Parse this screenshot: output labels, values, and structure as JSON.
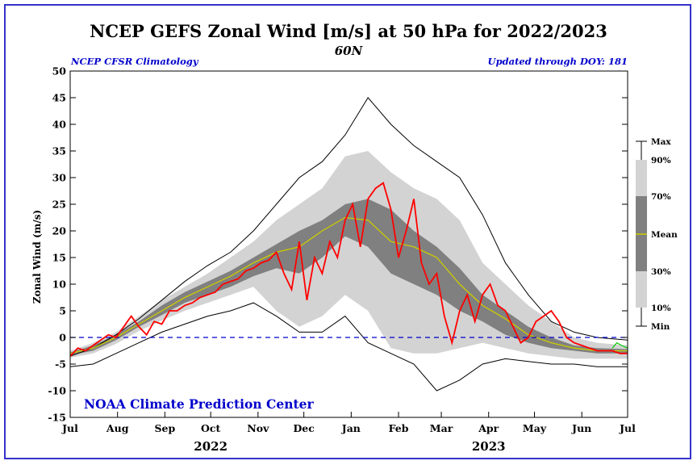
{
  "title": "NCEP GEFS Zonal Wind [m/s] at 50 hPa for 2022/2023",
  "subtitle": "60N",
  "left_note": "NCEP CFSR Climatology",
  "right_note": "Updated through DOY: 181",
  "credit": "NOAA Climate Prediction Center",
  "colors": {
    "frame": "#3333cc",
    "band_10_90": "#d3d3d3",
    "band_30_70": "#808080",
    "mean": "#cccc00",
    "observed": "#ff0000",
    "forecast": "#00cc00",
    "zero_line": "#0000cc"
  },
  "legend": {
    "items": [
      "Max",
      "90%",
      "70%",
      "Mean",
      "30%",
      "10%",
      "Min"
    ]
  },
  "chart_data": {
    "type": "area",
    "ylabel": "Zonal Wind (m/s)",
    "xlabel": "",
    "ylim": [
      -15,
      50
    ],
    "yticks": [
      50,
      45,
      40,
      35,
      30,
      25,
      20,
      15,
      10,
      5,
      0,
      -5,
      -10,
      -15
    ],
    "xlim_days": [
      0,
      365
    ],
    "month_ticks": [
      {
        "label": "Jul",
        "day": 0
      },
      {
        "label": "Aug",
        "day": 31
      },
      {
        "label": "Sep",
        "day": 62
      },
      {
        "label": "Oct",
        "day": 92
      },
      {
        "label": "Nov",
        "day": 123
      },
      {
        "label": "Dec",
        "day": 153
      },
      {
        "label": "Jan",
        "day": 184
      },
      {
        "label": "Feb",
        "day": 215
      },
      {
        "label": "Mar",
        "day": 243
      },
      {
        "label": "Apr",
        "day": 274
      },
      {
        "label": "May",
        "day": 304
      },
      {
        "label": "Jun",
        "day": 335
      },
      {
        "label": "Jul",
        "day": 365
      }
    ],
    "years": [
      {
        "label": "2022",
        "day": 92
      },
      {
        "label": "2023",
        "day": 274
      }
    ],
    "grid": false,
    "legend_position": "right",
    "climatology": {
      "x": [
        0,
        15,
        30,
        45,
        60,
        75,
        90,
        105,
        120,
        135,
        150,
        165,
        180,
        195,
        210,
        225,
        240,
        255,
        270,
        285,
        300,
        315,
        330,
        345,
        365
      ],
      "max": [
        -3.5,
        -2,
        0.5,
        3.5,
        7,
        10.5,
        13.5,
        16,
        20,
        25,
        30,
        33,
        38,
        45,
        40,
        36,
        33,
        30,
        23,
        14,
        8,
        3,
        1,
        0,
        -0.5
      ],
      "p90": [
        -2.5,
        -1,
        1,
        4,
        7,
        9.5,
        12,
        15,
        18,
        22,
        25,
        28,
        34,
        35,
        31,
        28,
        26,
        22,
        14,
        10,
        6,
        3,
        0,
        -1,
        -1.5
      ],
      "p70": [
        -2.8,
        -1.5,
        0.5,
        3,
        6,
        8.5,
        10.5,
        12.5,
        15,
        17.5,
        20,
        22,
        25,
        26,
        24,
        20,
        17,
        13,
        8,
        5,
        2,
        0,
        -1.5,
        -2,
        -2.2
      ],
      "mean": [
        -3,
        -2,
        0,
        2.5,
        5,
        7.5,
        9.5,
        11.5,
        14,
        16,
        17,
        20,
        22.5,
        22,
        18,
        17,
        15,
        10,
        6,
        3.5,
        0.5,
        -1,
        -2,
        -2.5,
        -2.5
      ],
      "p30": [
        -3.3,
        -2.5,
        -0.5,
        2,
        4.2,
        6.5,
        8,
        9.5,
        11.5,
        13,
        12,
        15,
        19,
        17,
        12,
        10,
        8,
        5,
        3,
        0.5,
        -1,
        -2,
        -2.5,
        -3,
        -3
      ],
      "p10": [
        -3.8,
        -3,
        -1.2,
        1.2,
        3.2,
        5,
        6.5,
        8,
        9.5,
        5,
        2,
        4,
        8,
        5,
        -2,
        -3,
        -3,
        -2,
        -1,
        -2,
        -3,
        -3.5,
        -4,
        -4,
        -4
      ],
      "min": [
        -5.5,
        -5,
        -3,
        -1,
        1,
        2.5,
        4,
        5,
        6.5,
        4,
        1,
        1,
        4,
        -1,
        -3,
        -5,
        -10,
        -8,
        -5,
        -4,
        -4.5,
        -5,
        -5,
        -5.5,
        -5.5
      ]
    },
    "series": [
      {
        "name": "observed",
        "x": [
          0,
          5,
          10,
          15,
          20,
          25,
          30,
          35,
          40,
          45,
          50,
          55,
          60,
          65,
          70,
          75,
          80,
          85,
          90,
          95,
          100,
          105,
          110,
          115,
          120,
          125,
          130,
          135,
          140,
          145,
          150,
          155,
          160,
          165,
          170,
          175,
          180,
          185,
          190,
          195,
          200,
          205,
          210,
          215,
          220,
          225,
          230,
          235,
          240,
          245,
          250,
          255,
          260,
          265,
          270,
          275,
          280,
          285,
          290,
          295,
          300,
          305,
          310,
          315,
          320,
          325,
          330,
          335,
          340,
          345,
          350,
          355,
          360,
          365
        ],
        "values": [
          -3.5,
          -2,
          -2.5,
          -1.5,
          -0.5,
          0.5,
          0,
          2,
          4,
          2,
          0.5,
          3,
          2.5,
          5,
          5,
          6,
          6.5,
          7.5,
          8,
          8.5,
          10,
          10.5,
          11,
          12.5,
          13,
          14,
          14.5,
          16,
          12,
          9,
          18,
          7,
          15,
          12,
          18,
          15,
          22,
          25,
          17,
          26,
          28,
          29,
          24,
          15,
          20,
          26,
          14,
          10,
          12,
          4,
          -1,
          5,
          8,
          3,
          8,
          10,
          6,
          5,
          2,
          -1,
          0,
          3,
          4,
          5,
          3,
          0,
          -1,
          -1.5,
          -2,
          -2.5,
          -2.5,
          -2.5,
          -3,
          -3
        ]
      },
      {
        "name": "forecast",
        "x": [
          355,
          358,
          361,
          365
        ],
        "values": [
          -2,
          -1,
          -1.5,
          -2
        ]
      }
    ]
  }
}
